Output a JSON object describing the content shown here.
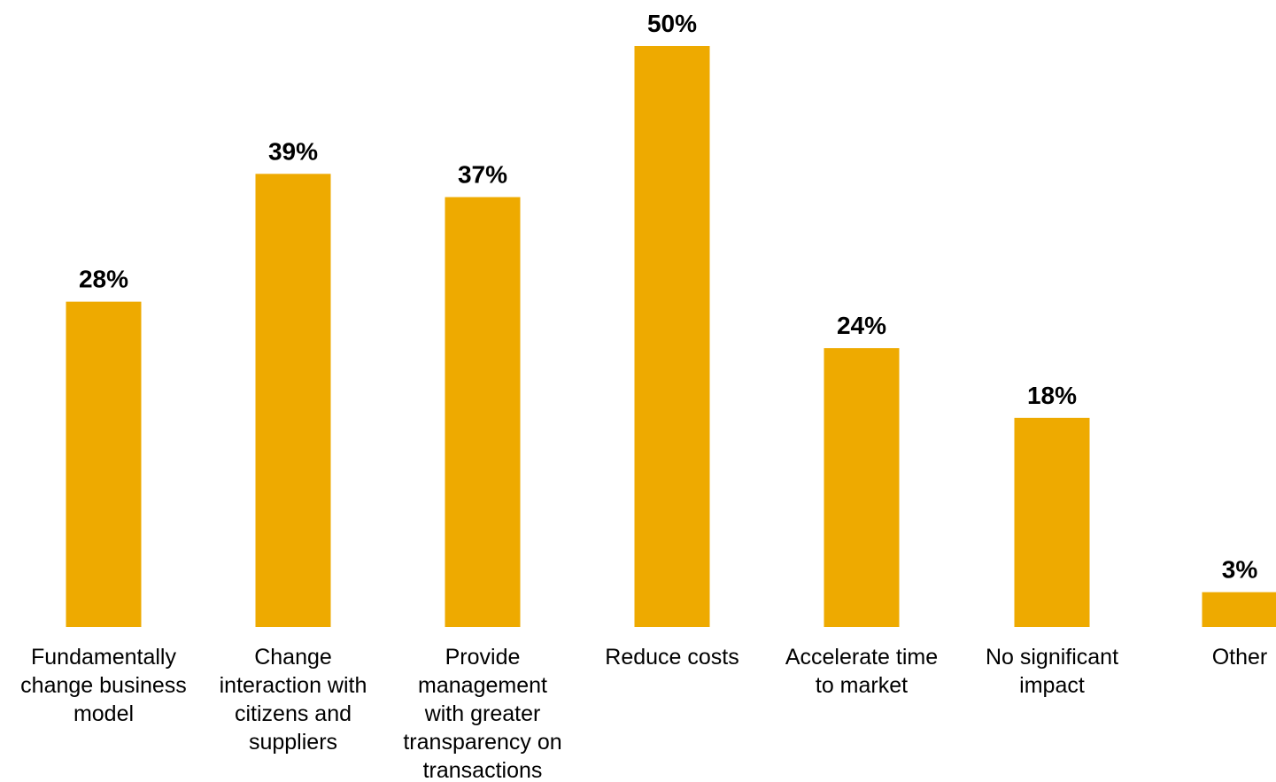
{
  "chart_data": {
    "type": "bar",
    "categories": [
      "Fundamentally change business model",
      "Change interaction with citizens and suppliers",
      "Provide management with greater transparency on transactions",
      "Reduce costs",
      "Accelerate time to market",
      "No significant impact",
      "Other"
    ],
    "category_lines": [
      [
        "Fundamentally",
        "change business",
        "model"
      ],
      [
        "Change",
        "interaction with",
        "citizens and",
        "suppliers"
      ],
      [
        "Provide",
        "management",
        "with greater",
        "transparency on",
        "transactions"
      ],
      [
        "Reduce costs"
      ],
      [
        "Accelerate time",
        "to market"
      ],
      [
        "No significant",
        "impact"
      ],
      [
        "Other"
      ]
    ],
    "values": [
      28,
      39,
      37,
      50,
      24,
      18,
      3
    ],
    "value_labels": [
      "28%",
      "39%",
      "37%",
      "50%",
      "24%",
      "18%",
      "3%"
    ],
    "unit": "%",
    "ylim": [
      0,
      50
    ],
    "bar_color": "#EEAA00",
    "grid": false,
    "legend": "none"
  }
}
